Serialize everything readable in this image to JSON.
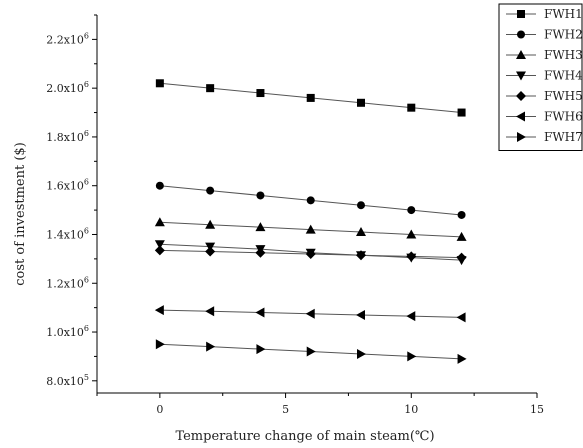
{
  "chart_data": {
    "type": "line",
    "xlabel": "Temperature change of main steam(℃)",
    "ylabel": "cost of investment ($)",
    "xlim": [
      -2.5,
      15
    ],
    "ylim": [
      750000,
      2300000
    ],
    "x_ticks": [
      0,
      5,
      10,
      15
    ],
    "x_tick_labels": [
      "0",
      "5",
      "10",
      "15"
    ],
    "y_ticks": [
      800000,
      1000000,
      1200000,
      1400000,
      1600000,
      1800000,
      2000000,
      2200000
    ],
    "y_tick_labels": [
      {
        "mantissa": "8.0x10",
        "exp": "5"
      },
      {
        "mantissa": "1.0x10",
        "exp": "6"
      },
      {
        "mantissa": "1.2x10",
        "exp": "6"
      },
      {
        "mantissa": "1.4x10",
        "exp": "6"
      },
      {
        "mantissa": "1.6x10",
        "exp": "6"
      },
      {
        "mantissa": "1.8x10",
        "exp": "6"
      },
      {
        "mantissa": "2.0x10",
        "exp": "6"
      },
      {
        "mantissa": "2.2x10",
        "exp": "6"
      }
    ],
    "grid": false,
    "legend_position": "top-right",
    "x": [
      0,
      2,
      4,
      6,
      8,
      10,
      12
    ],
    "series": [
      {
        "name": "FWH1",
        "marker": "square",
        "values": [
          2020000,
          2000000,
          1980000,
          1960000,
          1940000,
          1920000,
          1900000
        ]
      },
      {
        "name": "FWH2",
        "marker": "circle",
        "values": [
          1600000,
          1580000,
          1560000,
          1540000,
          1520000,
          1500000,
          1480000
        ]
      },
      {
        "name": "FWH3",
        "marker": "triangle-up",
        "values": [
          1450000,
          1440000,
          1430000,
          1420000,
          1410000,
          1400000,
          1390000
        ]
      },
      {
        "name": "FWH4",
        "marker": "triangle-down",
        "values": [
          1360000,
          1350000,
          1340000,
          1325000,
          1315000,
          1305000,
          1295000
        ]
      },
      {
        "name": "FWH5",
        "marker": "diamond",
        "values": [
          1335000,
          1330000,
          1325000,
          1320000,
          1315000,
          1310000,
          1305000
        ]
      },
      {
        "name": "FWH6",
        "marker": "triangle-left",
        "values": [
          1090000,
          1085000,
          1080000,
          1075000,
          1070000,
          1065000,
          1060000
        ]
      },
      {
        "name": "FWH7",
        "marker": "triangle-right",
        "values": [
          950000,
          940000,
          930000,
          920000,
          910000,
          900000,
          890000
        ]
      }
    ],
    "colors": {
      "line": "#555555",
      "marker": "#000000",
      "axis": "#000000"
    }
  }
}
